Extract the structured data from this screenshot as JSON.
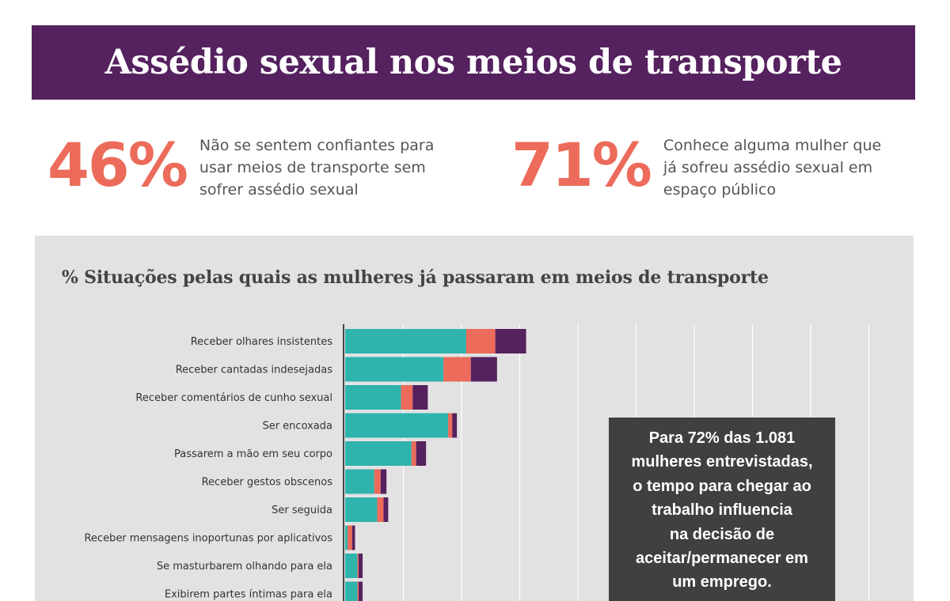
{
  "header": {
    "title": "Assédio sexual nos meios de transporte"
  },
  "stats": [
    {
      "value": "46%",
      "lines": [
        "Não se sentem confiantes para",
        "usar meios de transporte sem",
        "sofrer assédio sexual"
      ]
    },
    {
      "value": "71%",
      "lines": [
        "Conhece alguma mulher que",
        "já sofreu assédio sexual em",
        "espaço público"
      ]
    }
  ],
  "callout": {
    "lines": [
      "Para 72% das 1.081",
      "mulheres entrevistadas,",
      "o tempo para chegar ao",
      "trabalho influencia",
      "na decisão de",
      "aceitar/permanecer em",
      "um emprego."
    ]
  },
  "colors": {
    "teal": "#2eb3ad",
    "coral": "#ec6b5a",
    "purple": "#55215f",
    "banner": "#55215f",
    "panel": "#e2e2e2",
    "callout": "#404040"
  },
  "chart_data": {
    "type": "bar",
    "orientation": "horizontal",
    "stacked": true,
    "title": "% Situações pelas quais as mulheres já passaram em meios de transporte",
    "categories": [
      "Receber olhares insistentes",
      "Receber cantadas indesejadas",
      "Receber comentários de cunho sexual",
      "Ser encoxada",
      "Passarem a mão em seu corpo",
      "Receber gestos obscenos",
      "Ser seguida",
      "Receber mensagens inoportunas por aplicativos",
      "Se masturbarem olhando para ela",
      "Exibirem partes íntimas para ela"
    ],
    "series": [
      {
        "values": [
          20.8,
          16.9,
          9.6,
          17.7,
          11.4,
          5.0,
          5.5,
          0.4,
          2.1,
          2.1
        ]
      },
      {
        "values": [
          5.0,
          4.7,
          2.0,
          0.7,
          0.8,
          1.1,
          1.1,
          0.8,
          0.2,
          0.2
        ]
      },
      {
        "values": [
          5.3,
          4.5,
          2.6,
          0.8,
          1.7,
          1.0,
          0.8,
          0.5,
          0.7,
          0.7
        ]
      }
    ],
    "xlim": [
      0,
      92.5
    ],
    "grid": true,
    "gridline_step": 10
  }
}
